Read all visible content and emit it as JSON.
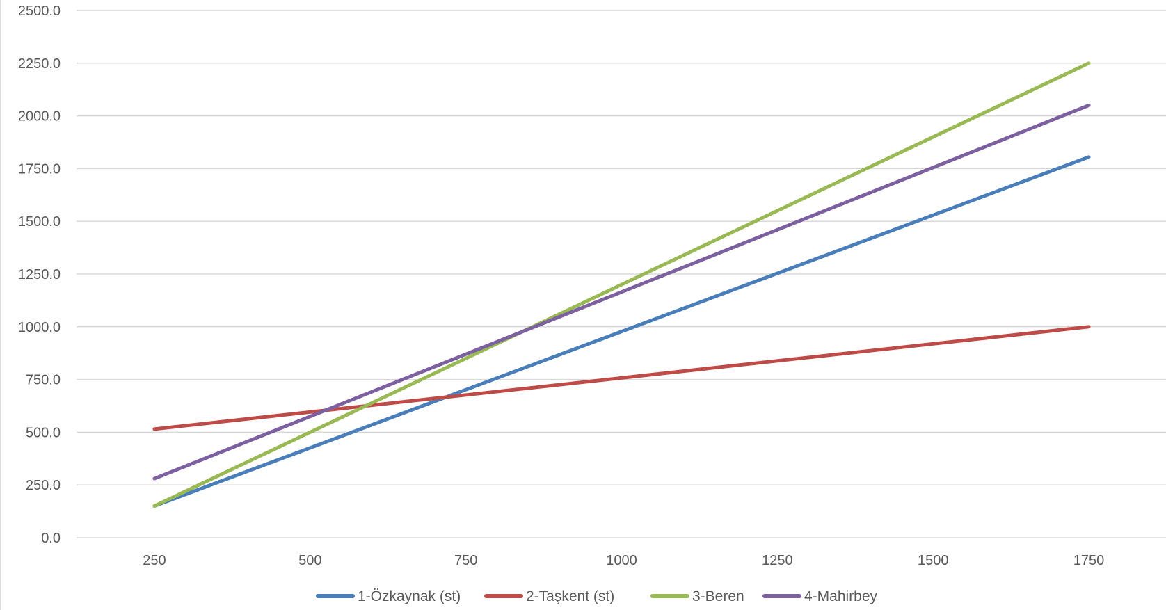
{
  "chart_data": {
    "type": "line",
    "title": "",
    "xlabel": "",
    "ylabel": "",
    "x": [
      250,
      1750
    ],
    "x_ticks": [
      "250",
      "500",
      "750",
      "1000",
      "1250",
      "1500",
      "1750"
    ],
    "x_tick_values": [
      250,
      500,
      750,
      1000,
      1250,
      1500,
      1750
    ],
    "xlim": [
      125,
      1875
    ],
    "y_ticks": [
      "0.0",
      "250.0",
      "500.0",
      "750.0",
      "1000.0",
      "1250.0",
      "1500.0",
      "1750.0",
      "2000.0",
      "2250.0",
      "2500.0"
    ],
    "y_tick_values": [
      0,
      250,
      500,
      750,
      1000,
      1250,
      1500,
      1750,
      2000,
      2250,
      2500
    ],
    "ylim": [
      0,
      2500
    ],
    "grid": true,
    "legend_position": "bottom",
    "series": [
      {
        "name": "1-Özkaynak (st)",
        "color": "#4a7ebb",
        "values": [
          150,
          1805
        ]
      },
      {
        "name": "2-Taşkent (st)",
        "color": "#be4b48",
        "values": [
          515,
          1000
        ]
      },
      {
        "name": "3-Beren",
        "color": "#98b954",
        "values": [
          150,
          2250
        ]
      },
      {
        "name": "4-Mahirbey",
        "color": "#7d60a0",
        "values": [
          280,
          2050
        ]
      }
    ]
  }
}
